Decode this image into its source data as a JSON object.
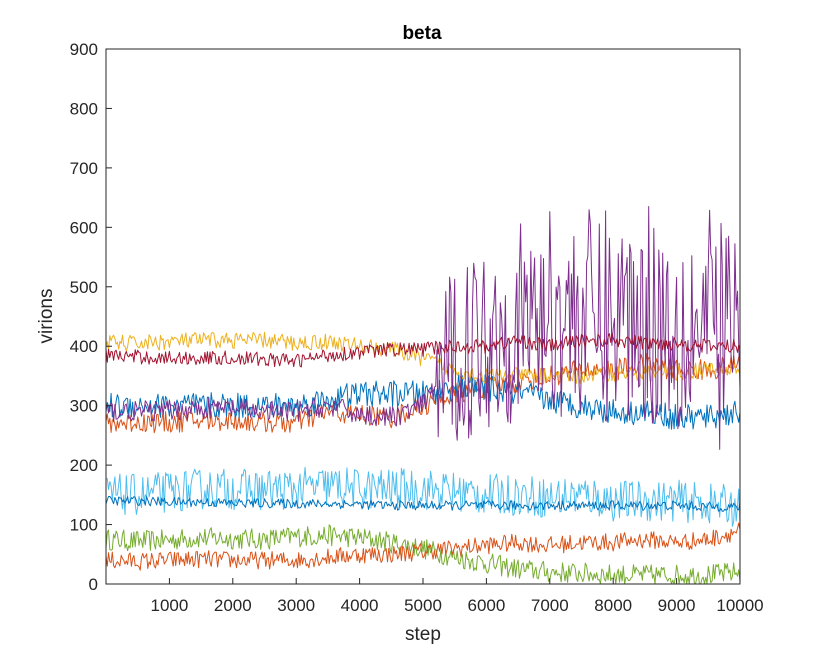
{
  "chart_data": {
    "type": "line",
    "title": "beta",
    "xlabel": "step",
    "ylabel": "virions",
    "xlim": [
      0,
      10000
    ],
    "ylim": [
      0,
      900
    ],
    "xticks": [
      1000,
      2000,
      3000,
      4000,
      5000,
      6000,
      7000,
      8000,
      9000,
      10000
    ],
    "yticks": [
      0,
      100,
      200,
      300,
      400,
      500,
      600,
      700,
      800,
      900
    ],
    "grid": false,
    "legend": "none",
    "x": [
      0,
      500,
      1000,
      1500,
      2000,
      2500,
      3000,
      3500,
      4000,
      4500,
      5000,
      5500,
      6000,
      6500,
      7000,
      7500,
      8000,
      8500,
      9000,
      9500,
      10000
    ],
    "series": [
      {
        "color": "#77AC30",
        "noise": 18,
        "values": [
          75,
          72,
          74,
          78,
          76,
          75,
          80,
          82,
          78,
          70,
          60,
          45,
          35,
          25,
          20,
          18,
          15,
          15,
          15,
          15,
          20
        ]
      },
      {
        "color": "#D95319",
        "noise": 15,
        "values": [
          40,
          38,
          40,
          42,
          40,
          40,
          40,
          45,
          50,
          50,
          55,
          60,
          65,
          70,
          65,
          70,
          70,
          75,
          70,
          75,
          90
        ]
      },
      {
        "color": "#4DBEEE",
        "noise": 35,
        "values": [
          150,
          150,
          155,
          160,
          160,
          158,
          160,
          165,
          160,
          160,
          160,
          155,
          150,
          150,
          145,
          150,
          140,
          140,
          140,
          135,
          130
        ]
      },
      {
        "color": "#0072BD",
        "noise": 8,
        "values": [
          140,
          140,
          138,
          138,
          136,
          136,
          135,
          135,
          134,
          132,
          132,
          132,
          132,
          132,
          132,
          132,
          132,
          132,
          132,
          130,
          130
        ]
      },
      {
        "color": "#D95319",
        "noise": 18,
        "values": [
          270,
          272,
          272,
          275,
          275,
          272,
          270,
          290,
          285,
          280,
          300,
          320,
          330,
          340,
          350,
          360,
          360,
          370,
          360,
          360,
          370
        ]
      },
      {
        "color": "#0072BD",
        "noise": 22,
        "values": [
          300,
          300,
          300,
          300,
          300,
          300,
          300,
          310,
          320,
          320,
          320,
          330,
          330,
          320,
          310,
          300,
          290,
          290,
          280,
          280,
          290
        ]
      },
      {
        "color": "#EDB120",
        "noise": 14,
        "values": [
          405,
          405,
          408,
          410,
          410,
          410,
          405,
          408,
          400,
          395,
          380,
          360,
          350,
          350,
          350,
          350,
          355,
          355,
          355,
          360,
          360
        ]
      },
      {
        "color": "#7E2F8E",
        "noise": 18,
        "values": [
          290,
          290,
          292,
          295,
          295,
          290,
          290,
          300,
          285,
          280,
          300,
          380,
          420,
          440,
          460,
          450,
          450,
          460,
          440,
          430,
          430
        ]
      },
      {
        "color": "#A2142F",
        "noise": 12,
        "values": [
          385,
          382,
          380,
          380,
          380,
          378,
          375,
          385,
          390,
          395,
          395,
          400,
          400,
          410,
          400,
          410,
          410,
          405,
          405,
          400,
          400
        ]
      }
    ]
  }
}
